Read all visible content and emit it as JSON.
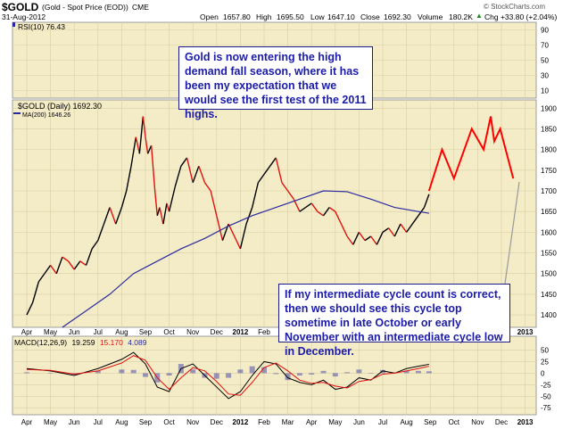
{
  "header": {
    "symbol": "$GOLD",
    "name": "(Gold - Spot Price (EOD))",
    "exchange": "CME",
    "date": "31-Aug-2012",
    "open_label": "Open",
    "open": "1657.80",
    "high_label": "High",
    "high": "1695.50",
    "low_label": "Low",
    "low": "1647.10",
    "close_label": "Close",
    "close": "1692.30",
    "volume_label": "Volume",
    "volume": "180.2K",
    "change": "Chg +33.80 (+2.04%)",
    "copyright": "© StockCharts.com",
    "up_arrow": "▲"
  },
  "panels": {
    "rsi_label": "RSI(10) 76.43",
    "price_label": "$GOLD (Daily) 1692.30",
    "ma_label": "MA(200) 1646.26",
    "macd_label": "MACD(12,26,9)",
    "macd_values": [
      "19.259",
      "15.170",
      "4.089"
    ]
  },
  "callouts": {
    "top": "Gold is now entering the high demand fall season, where it has been my expectation that we would see the first test of the 2011 highs.",
    "bottom": "If my intermediate cycle count is correct, then we should see this cycle top sometime in late October or early November with an intermediate cycle low in December."
  },
  "colors": {
    "panel_bg": "#f4ecc6",
    "grid": "#d8cfa4",
    "up": "#000000",
    "down": "#e01010",
    "ma": "#2a2aa0",
    "projection": "#ff0000",
    "macd": "#000000",
    "signal": "#e01010",
    "histogram": "#2a2aa0"
  },
  "chart_data": {
    "type": "line",
    "x_labels": [
      "Apr",
      "May",
      "Jun",
      "Jul",
      "Aug",
      "Sep",
      "Oct",
      "Nov",
      "Dec",
      "2012",
      "Feb",
      "Mar",
      "Apr",
      "May",
      "Jun",
      "Jul",
      "Aug",
      "Sep",
      "Oct",
      "Nov",
      "Dec",
      "2013"
    ],
    "rsi": {
      "ticks": [
        "90",
        "70",
        "50",
        "30",
        "10"
      ],
      "ylim": [
        0,
        100
      ]
    },
    "price": {
      "ylim": [
        1370,
        1920
      ],
      "ticks": [
        "1900",
        "1850",
        "1800",
        "1750",
        "1700",
        "1650",
        "1600",
        "1550",
        "1500",
        "1450",
        "1400"
      ],
      "series": [
        {
          "name": "$GOLD",
          "x": [
            0.0,
            0.25,
            0.5,
            0.75,
            1.0,
            1.25,
            1.5,
            1.75,
            2.0,
            2.25,
            2.5,
            2.75,
            3.0,
            3.25,
            3.5,
            3.75,
            4.0,
            4.2,
            4.4,
            4.6,
            4.75,
            4.9,
            5.0,
            5.1,
            5.25,
            5.4,
            5.5,
            5.6,
            5.75,
            5.9,
            6.0,
            6.25,
            6.5,
            6.75,
            7.0,
            7.25,
            7.5,
            7.75,
            8.0,
            8.25,
            8.5,
            8.75,
            9.0,
            9.25,
            9.5,
            9.75,
            10.0,
            10.25,
            10.5,
            10.75,
            11.0,
            11.25,
            11.5,
            11.75,
            12.0,
            12.25,
            12.5,
            12.75,
            13.0,
            13.25,
            13.5,
            13.75,
            14.0,
            14.25,
            14.5,
            14.75,
            15.0,
            15.25,
            15.5,
            15.75,
            16.0,
            16.25,
            16.5,
            16.75,
            16.95
          ],
          "values": [
            1400,
            1430,
            1480,
            1500,
            1520,
            1500,
            1540,
            1530,
            1510,
            1530,
            1520,
            1560,
            1580,
            1620,
            1660,
            1620,
            1660,
            1700,
            1760,
            1830,
            1790,
            1880,
            1830,
            1790,
            1810,
            1700,
            1640,
            1660,
            1620,
            1670,
            1650,
            1710,
            1760,
            1780,
            1720,
            1760,
            1720,
            1700,
            1640,
            1580,
            1620,
            1590,
            1560,
            1620,
            1660,
            1720,
            1740,
            1760,
            1780,
            1720,
            1700,
            1680,
            1650,
            1660,
            1670,
            1650,
            1640,
            1660,
            1650,
            1620,
            1590,
            1570,
            1600,
            1580,
            1590,
            1570,
            1600,
            1610,
            1590,
            1620,
            1600,
            1620,
            1640,
            1660,
            1692
          ]
        },
        {
          "name": "MA(200)",
          "x": [
            1.5,
            2.5,
            3.5,
            4.5,
            5.5,
            6.5,
            7.5,
            8.5,
            9.5,
            10.5,
            11.5,
            12.5,
            13.5,
            14.5,
            15.5,
            16.5,
            16.95
          ],
          "values": [
            1370,
            1410,
            1450,
            1500,
            1530,
            1560,
            1585,
            1615,
            1640,
            1660,
            1680,
            1700,
            1698,
            1680,
            1660,
            1650,
            1646
          ]
        },
        {
          "name": "Projection",
          "x": [
            16.95,
            17.5,
            18.0,
            18.75,
            19.25,
            19.55,
            19.7,
            19.95,
            20.5
          ],
          "values": [
            1700,
            1800,
            1730,
            1850,
            1800,
            1880,
            1820,
            1850,
            1730
          ]
        }
      ]
    },
    "macd": {
      "ylim": [
        -90,
        80
      ],
      "ticks": [
        "50",
        "25",
        "0",
        "-25",
        "-50",
        "-75"
      ],
      "series": [
        {
          "name": "MACD",
          "x": [
            0,
            1,
            2,
            3,
            4,
            4.5,
            5,
            5.5,
            6,
            6.5,
            7,
            7.5,
            8,
            8.5,
            9,
            9.5,
            10,
            10.5,
            11,
            11.5,
            12,
            12.5,
            13,
            13.5,
            14,
            14.5,
            15,
            15.5,
            16,
            16.5,
            16.95
          ],
          "values": [
            10,
            5,
            -5,
            10,
            30,
            45,
            20,
            -30,
            -40,
            10,
            20,
            -5,
            -30,
            -55,
            -40,
            -5,
            25,
            20,
            -10,
            -20,
            -25,
            -15,
            -35,
            -30,
            -10,
            -15,
            5,
            0,
            10,
            15,
            19.259
          ]
        },
        {
          "name": "Signal",
          "x": [
            0,
            1,
            2,
            3,
            4,
            4.5,
            5,
            5.5,
            6,
            6.5,
            7,
            7.5,
            8,
            8.5,
            9,
            9.5,
            10,
            10.5,
            11,
            11.5,
            12,
            12.5,
            13,
            13.5,
            14,
            14.5,
            15,
            15.5,
            16,
            16.5,
            16.95
          ],
          "values": [
            8,
            6,
            -2,
            5,
            22,
            38,
            28,
            -10,
            -35,
            -10,
            12,
            5,
            -18,
            -45,
            -48,
            -20,
            12,
            22,
            5,
            -15,
            -22,
            -20,
            -28,
            -32,
            -18,
            -14,
            -2,
            0,
            5,
            10,
            15.17
          ]
        }
      ]
    }
  }
}
